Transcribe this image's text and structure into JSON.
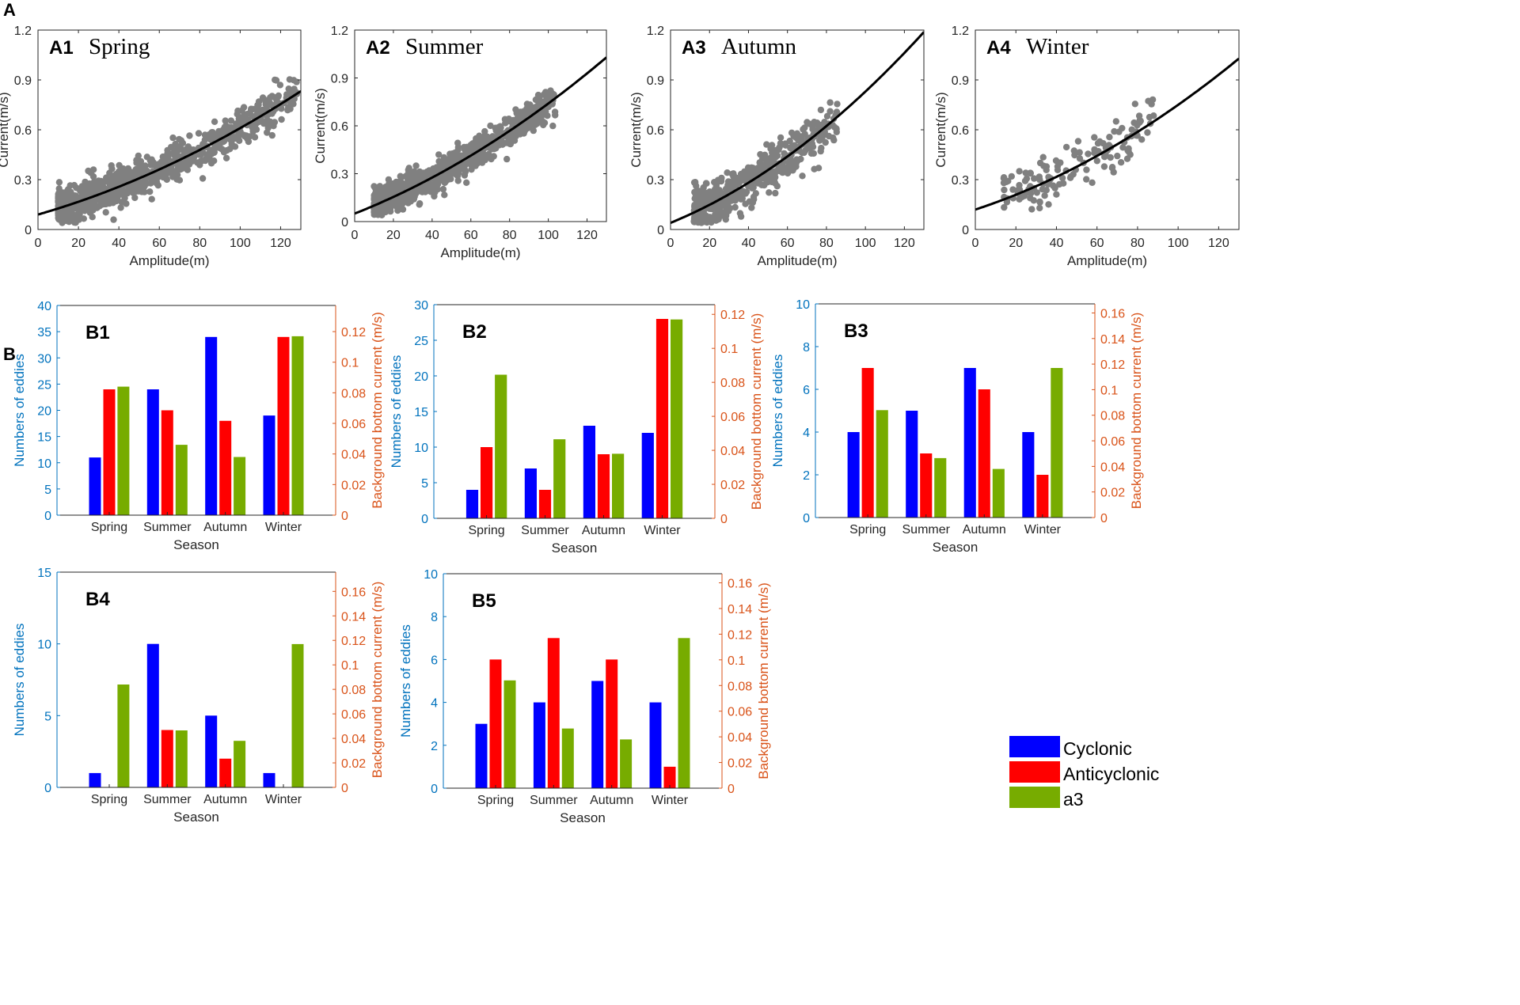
{
  "figure": {
    "panel_A_label": "A",
    "panel_B_label": "B"
  },
  "colors": {
    "scatter": "#808080",
    "fit": "#000000",
    "cyclonic": "#0000ff",
    "anticyclonic": "#ff0000",
    "a3": "#77ac00",
    "left_axis": "#0072bd",
    "right_axis": "#d95319"
  },
  "legend": {
    "items": [
      {
        "label": "Cyclonic",
        "color": "#0000ff"
      },
      {
        "label": "Anticyclonic",
        "color": "#ff0000"
      },
      {
        "label": "a3",
        "color": "#77ac00"
      }
    ]
  },
  "chart_data": [
    {
      "id": "A1",
      "type": "scatter",
      "tag": "A1",
      "title": "Spring",
      "xlabel": "Amplitude(m)",
      "ylabel": "Current(m/s)",
      "xlim": [
        0,
        130
      ],
      "ylim": [
        0,
        1.2
      ],
      "xticks": [
        "0",
        "20",
        "40",
        "60",
        "80",
        "100",
        "120"
      ],
      "yticks": [
        "0",
        "0.3",
        "0.6",
        "0.9",
        "1.2"
      ],
      "n_points": 900,
      "x_range": [
        10,
        128
      ],
      "spread": 0.055,
      "fit": {
        "a": 0.09,
        "b": 0.0035,
        "c": 1.7e-05
      }
    },
    {
      "id": "A2",
      "type": "scatter",
      "tag": "A2",
      "title": "Summer",
      "xlabel": "Amplitude(m)",
      "ylabel": "Current(m/s)",
      "xlim": [
        0,
        130
      ],
      "ylim": [
        0,
        1.2
      ],
      "xticks": [
        "0",
        "20",
        "40",
        "60",
        "80",
        "100",
        "120"
      ],
      "yticks": [
        "0",
        "0.3",
        "0.6",
        "0.9",
        "1.2"
      ],
      "n_points": 900,
      "x_range": [
        10,
        104
      ],
      "spread": 0.05,
      "fit": {
        "a": 0.05,
        "b": 0.0048,
        "c": 2.1e-05
      }
    },
    {
      "id": "A3",
      "type": "scatter",
      "tag": "A3",
      "title": "Autumn",
      "xlabel": "Amplitude(m)",
      "ylabel": "Current(m/s)",
      "xlim": [
        0,
        130
      ],
      "ylim": [
        0,
        1.2
      ],
      "xticks": [
        "0",
        "20",
        "40",
        "60",
        "80",
        "100",
        "120"
      ],
      "yticks": [
        "0",
        "0.3",
        "0.6",
        "0.9",
        "1.2"
      ],
      "n_points": 500,
      "x_range": [
        12,
        86
      ],
      "spread": 0.07,
      "fit": {
        "a": 0.04,
        "b": 0.0048,
        "c": 3.1e-05
      }
    },
    {
      "id": "A4",
      "type": "scatter",
      "tag": "A4",
      "title": "Winter",
      "xlabel": "Amplitude(m)",
      "ylabel": "Current(m/s)",
      "xlim": [
        0,
        130
      ],
      "ylim": [
        0,
        1.2
      ],
      "xticks": [
        "0",
        "20",
        "40",
        "60",
        "80",
        "100",
        "120"
      ],
      "yticks": [
        "0",
        "0.3",
        "0.6",
        "0.9",
        "1.2"
      ],
      "n_points": 140,
      "x_range": [
        14,
        89
      ],
      "spread": 0.075,
      "fit": {
        "a": 0.12,
        "b": 0.004,
        "c": 2.3e-05
      }
    },
    {
      "id": "B1",
      "type": "bar",
      "tag": "B1",
      "categories": [
        "Spring",
        "Summer",
        "Autumn",
        "Winter"
      ],
      "xlabel": "Season",
      "ylabel_left": "Numbers of eddies",
      "ylabel_right": "Background bottom current (m/s)",
      "ylim_left": [
        0,
        40
      ],
      "yticks_left": [
        "0",
        "5",
        "10",
        "15",
        "20",
        "25",
        "30",
        "35",
        "40"
      ],
      "ylim_right": [
        0,
        0.1371
      ],
      "yticks_right": [
        "0",
        "0.02",
        "0.04",
        "0.06",
        "0.08",
        "0.1",
        "0.12"
      ],
      "series": [
        {
          "name": "Cyclonic",
          "axis": "left",
          "values": [
            11,
            24,
            34,
            19
          ]
        },
        {
          "name": "Anticyclonic",
          "axis": "left",
          "values": [
            24,
            20,
            18,
            34
          ]
        },
        {
          "name": "a3",
          "axis": "right",
          "values": [
            0.084,
            0.046,
            0.038,
            0.117
          ]
        }
      ]
    },
    {
      "id": "B2",
      "type": "bar",
      "tag": "B2",
      "categories": [
        "Spring",
        "Summer",
        "Autumn",
        "Winter"
      ],
      "xlabel": "Season",
      "ylabel_left": "Numbers of eddies",
      "ylabel_right": "Background bottom current (m/s)",
      "ylim_left": [
        0,
        30
      ],
      "yticks_left": [
        "0",
        "5",
        "10",
        "15",
        "20",
        "25",
        "30"
      ],
      "ylim_right": [
        0,
        0.1257
      ],
      "yticks_right": [
        "0",
        "0.02",
        "0.04",
        "0.06",
        "0.08",
        "0.1",
        "0.12"
      ],
      "series": [
        {
          "name": "Cyclonic",
          "axis": "left",
          "values": [
            4,
            7,
            13,
            12
          ]
        },
        {
          "name": "Anticyclonic",
          "axis": "left",
          "values": [
            10,
            4,
            9,
            28
          ]
        },
        {
          "name": "a3",
          "axis": "right",
          "values": [
            0.0845,
            0.0465,
            0.038,
            0.117
          ]
        }
      ]
    },
    {
      "id": "B3",
      "type": "bar",
      "tag": "B3",
      "categories": [
        "Spring",
        "Summer",
        "Autumn",
        "Winter"
      ],
      "xlabel": "Season",
      "ylabel_left": "Numbers of eddies",
      "ylabel_right": "Background bottom current (m/s)",
      "ylim_left": [
        0,
        10
      ],
      "yticks_left": [
        "0",
        "2",
        "4",
        "6",
        "8",
        "10"
      ],
      "ylim_right": [
        0,
        0.1671
      ],
      "yticks_right": [
        "0",
        "0.02",
        "0.04",
        "0.06",
        "0.08",
        "0.1",
        "0.12",
        "0.14",
        "0.16"
      ],
      "series": [
        {
          "name": "Cyclonic",
          "axis": "left",
          "values": [
            4,
            5,
            7,
            4
          ]
        },
        {
          "name": "Anticyclonic",
          "axis": "left",
          "values": [
            7,
            3,
            6,
            2
          ]
        },
        {
          "name": "a3",
          "axis": "right",
          "values": [
            0.084,
            0.0465,
            0.038,
            0.117
          ]
        }
      ]
    },
    {
      "id": "B4",
      "type": "bar",
      "tag": "B4",
      "categories": [
        "Spring",
        "Summer",
        "Autumn",
        "Winter"
      ],
      "xlabel": "Season",
      "ylabel_left": "Numbers of eddies",
      "ylabel_right": "Background bottom current (m/s)",
      "ylim_left": [
        0,
        15
      ],
      "yticks_left": [
        "0",
        "5",
        "10",
        "15"
      ],
      "ylim_right": [
        0,
        0.1757
      ],
      "yticks_right": [
        "0",
        "0.02",
        "0.04",
        "0.06",
        "0.08",
        "0.1",
        "0.12",
        "0.14",
        "0.16"
      ],
      "series": [
        {
          "name": "Cyclonic",
          "axis": "left",
          "values": [
            1,
            10,
            5,
            1
          ]
        },
        {
          "name": "Anticyclonic",
          "axis": "left",
          "values": [
            0,
            4,
            2,
            0
          ]
        },
        {
          "name": "a3",
          "axis": "right",
          "values": [
            0.084,
            0.0465,
            0.038,
            0.117
          ]
        }
      ]
    },
    {
      "id": "B5",
      "type": "bar",
      "tag": "B5",
      "categories": [
        "Spring",
        "Summer",
        "Autumn",
        "Winter"
      ],
      "xlabel": "Season",
      "ylabel_left": "Numbers of eddies",
      "ylabel_right": "Background bottom current (m/s)",
      "ylim_left": [
        0,
        10
      ],
      "yticks_left": [
        "0",
        "2",
        "4",
        "6",
        "8",
        "10"
      ],
      "ylim_right": [
        0,
        0.1671
      ],
      "yticks_right": [
        "0",
        "0.02",
        "0.04",
        "0.06",
        "0.08",
        "0.1",
        "0.12",
        "0.14",
        "0.16"
      ],
      "series": [
        {
          "name": "Cyclonic",
          "axis": "left",
          "values": [
            3,
            4,
            5,
            4
          ]
        },
        {
          "name": "Anticyclonic",
          "axis": "left",
          "values": [
            6,
            7,
            6,
            1
          ]
        },
        {
          "name": "a3",
          "axis": "right",
          "values": [
            0.084,
            0.0465,
            0.038,
            0.117
          ]
        }
      ]
    }
  ]
}
